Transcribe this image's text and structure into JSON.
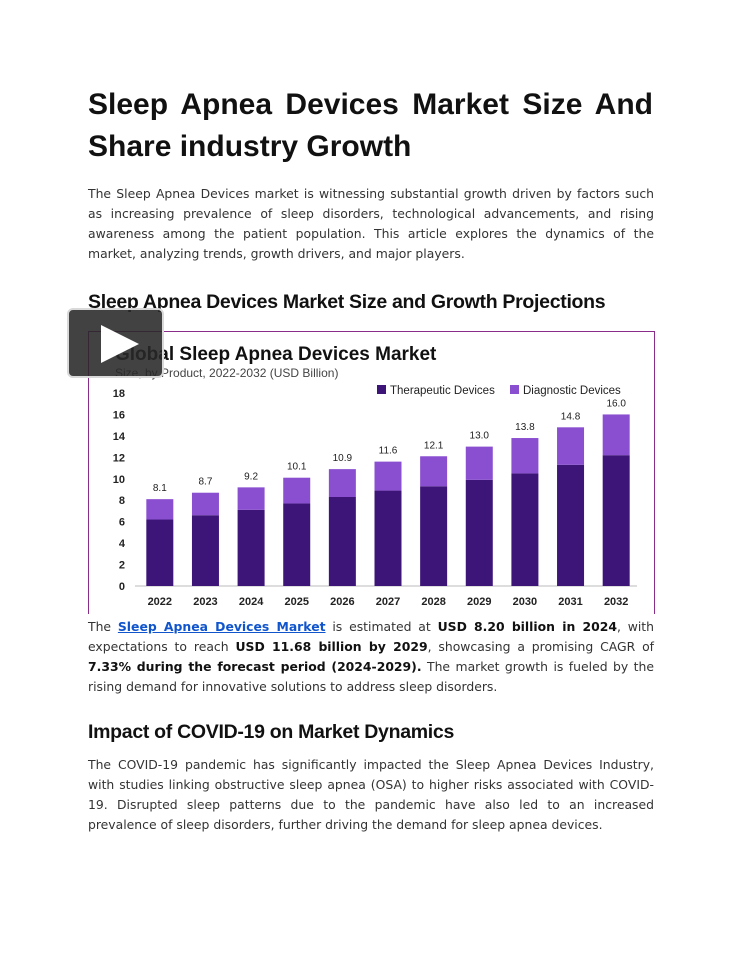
{
  "doc": {
    "title": "Sleep Apnea Devices Market Size And Share industry Growth",
    "intro": "The Sleep Apnea Devices market is witnessing substantial growth driven by factors such as increasing prevalence of sleep disorders, technological advancements, and rising awareness among the patient population. This article explores the dynamics of the market, analyzing trends, growth drivers, and major players.",
    "section1_heading": "Sleep Apnea Devices Market Size and Growth Projections",
    "market_para": {
      "t1": "The ",
      "link": "Sleep Apnea Devices Market",
      "t2": " is estimated at ",
      "b1": "USD 8.20 billion in 2024",
      "t3": ", with expectations to reach ",
      "b2": "USD 11.68 billion by 2029",
      "t4": ", showcasing a promising CAGR of ",
      "b3": "7.33% during the forecast period (2024-2029).",
      "t5": " The market growth is fueled by the rising demand for innovative solutions to address sleep disorders."
    },
    "section2_heading": "Impact of COVID-19 on Market Dynamics",
    "covid_para": "The COVID-19 pandemic has significantly impacted the Sleep Apnea Devices Industry, with studies linking obstructive sleep apnea (OSA) to higher risks associated with COVID-19. Disrupted sleep patterns due to the pandemic have also led to an increased prevalence of sleep disorders, further driving the demand for sleep apnea devices."
  },
  "chart_data": {
    "type": "bar",
    "stacked": true,
    "title": "Global Sleep Apnea Devices Market",
    "subtitle": "Size, by Product, 2022-2032 (USD Billion)",
    "categories": [
      "2022",
      "2023",
      "2024",
      "2025",
      "2026",
      "2027",
      "2028",
      "2029",
      "2030",
      "2031",
      "2032"
    ],
    "series": [
      {
        "name": "Therapeutic Devices",
        "color": "#3d1478",
        "values": [
          6.2,
          6.6,
          7.1,
          7.7,
          8.3,
          8.9,
          9.3,
          9.9,
          10.5,
          11.3,
          12.2
        ]
      },
      {
        "name": "Diagnostic Devices",
        "color": "#8a4fd0",
        "values": [
          1.9,
          2.1,
          2.1,
          2.4,
          2.6,
          2.7,
          2.8,
          3.1,
          3.3,
          3.5,
          3.8
        ]
      }
    ],
    "totals": [
      "8.1",
      "8.7",
      "9.2",
      "10.1",
      "10.9",
      "11.6",
      "12.1",
      "13.0",
      "13.8",
      "14.8",
      "16.0"
    ],
    "ylim": [
      0,
      18
    ],
    "yticks": [
      "0",
      "2",
      "4",
      "6",
      "8",
      "10",
      "12",
      "14",
      "16",
      "18"
    ],
    "grid": false,
    "legend_position": "top-right"
  }
}
